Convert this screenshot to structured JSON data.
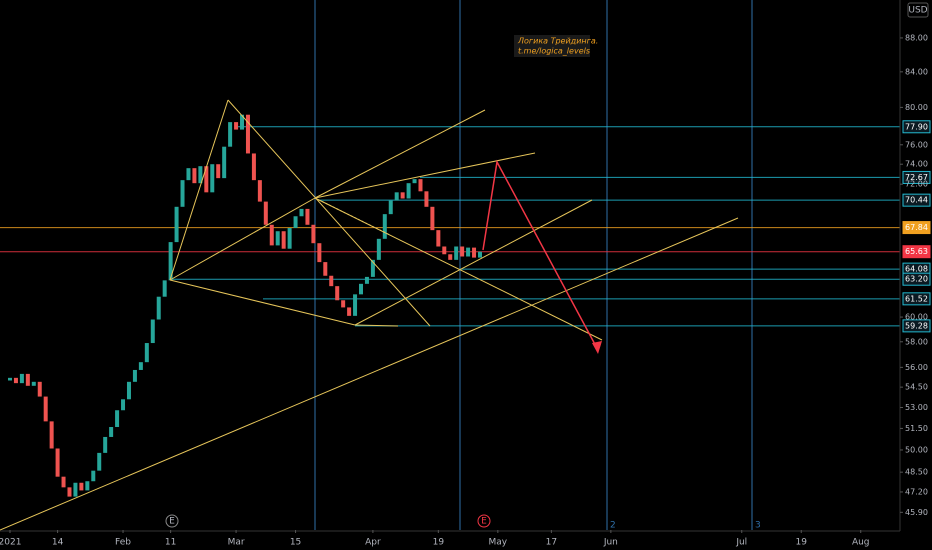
{
  "chart_data": {
    "type": "candlestick",
    "currency": "USD",
    "annotation": [
      "Логика Трейдинга.",
      "t.me/logica_levels"
    ],
    "markers": [
      "E",
      "E"
    ],
    "cycle_labels": [
      "2",
      "3"
    ],
    "log_scale": true,
    "up_color": "#26a69a",
    "down_color": "#ef5350",
    "xlim": [
      -1.68,
      149.6
    ],
    "ylim": [
      44.8,
      92.7
    ],
    "xticks": [
      {
        "value": 0,
        "label": "2021"
      },
      {
        "value": 8,
        "label": "14"
      },
      {
        "value": 19,
        "label": "Feb"
      },
      {
        "value": 27,
        "label": "11"
      },
      {
        "value": 38,
        "label": "Mar"
      },
      {
        "value": 48,
        "label": "15"
      },
      {
        "value": 61,
        "label": "Apr"
      },
      {
        "value": 72,
        "label": "19"
      },
      {
        "value": 82,
        "label": "May"
      },
      {
        "value": 91,
        "label": "17"
      },
      {
        "value": 101,
        "label": "Jun"
      },
      {
        "value": 123,
        "label": "Jul"
      },
      {
        "value": 133,
        "label": "19"
      },
      {
        "value": 143,
        "label": "Aug"
      }
    ],
    "yticks": [
      {
        "value": 88,
        "label": "88.00"
      },
      {
        "value": 84,
        "label": "84.00"
      },
      {
        "value": 80,
        "label": "80.00"
      },
      {
        "value": 76,
        "label": "76.00"
      },
      {
        "value": 74,
        "label": "74.00"
      },
      {
        "value": 72,
        "label": "72.00"
      },
      {
        "value": 60,
        "label": "60.00"
      },
      {
        "value": 58,
        "label": "58.00"
      },
      {
        "value": 56,
        "label": "56.00"
      },
      {
        "value": 54.5,
        "label": "54.50"
      },
      {
        "value": 53,
        "label": "53.00"
      },
      {
        "value": 51.5,
        "label": "51.50"
      },
      {
        "value": 50,
        "label": "50.00"
      },
      {
        "value": 48.5,
        "label": "48.50"
      },
      {
        "value": 47.2,
        "label": "47.20"
      },
      {
        "value": 45.9,
        "label": "45.90"
      }
    ],
    "levels": [
      {
        "value": 77.9,
        "label": "77.90",
        "color": "#22b8cf"
      },
      {
        "value": 72.67,
        "label": "72.67",
        "color": "#22b8cf"
      },
      {
        "value": 70.44,
        "label": "70.44",
        "color": "#22b8cf"
      },
      {
        "value": 67.84,
        "label": "67.84",
        "color": "#f0a020"
      },
      {
        "value": 65.63,
        "label": "65.63",
        "color": "#f23645"
      },
      {
        "value": 64.08,
        "label": "64.08",
        "color": "#22b8cf"
      },
      {
        "value": 63.2,
        "label": "63.20",
        "color": "#22b8cf"
      },
      {
        "value": 61.52,
        "label": "61.52",
        "color": "#22b8cf"
      },
      {
        "value": 59.28,
        "label": "59.28",
        "color": "#22b8cf"
      }
    ],
    "open": [
      55.0,
      55.2,
      54.8,
      55.5,
      54.6,
      54.9,
      53.8,
      52.0,
      50.1,
      48.2,
      47.5,
      46.9,
      47.8,
      47.3,
      47.9,
      48.6,
      49.8,
      50.9,
      51.6,
      52.8,
      53.6,
      54.9,
      55.8,
      56.4,
      57.9,
      59.8,
      61.7,
      63.1,
      66.5,
      69.8,
      72.4,
      73.6,
      72.1,
      73.8,
      71.2,
      74.0,
      72.6,
      75.8,
      78.4,
      77.6,
      79.2,
      75.1,
      72.4,
      70.3,
      68.1,
      66.2,
      67.5,
      65.9,
      67.8,
      68.9,
      69.6,
      68.1,
      66.4,
      64.7,
      63.5,
      62.6,
      61.4,
      60.8,
      60.1,
      61.9,
      62.8,
      63.4,
      64.9,
      66.8,
      69.1,
      70.4,
      71.2,
      70.6,
      72.1,
      72.5,
      71.3,
      69.8,
      67.6,
      66.1,
      65.4,
      64.9,
      66.1,
      65.2,
      66.0,
      65.1
    ],
    "close": [
      55.2,
      54.8,
      55.5,
      54.6,
      54.9,
      53.8,
      52.0,
      50.1,
      48.2,
      47.5,
      46.9,
      47.8,
      47.3,
      47.9,
      48.6,
      49.8,
      50.9,
      51.6,
      52.8,
      53.6,
      54.9,
      55.8,
      56.4,
      57.9,
      59.8,
      61.7,
      63.1,
      66.5,
      69.8,
      72.4,
      73.6,
      72.1,
      73.8,
      71.2,
      74.0,
      72.6,
      75.8,
      78.4,
      77.6,
      79.2,
      75.1,
      72.4,
      70.3,
      68.1,
      66.2,
      67.5,
      65.9,
      67.8,
      68.9,
      69.6,
      68.1,
      66.4,
      64.7,
      63.5,
      62.6,
      61.4,
      60.8,
      60.1,
      61.9,
      62.8,
      63.4,
      64.9,
      66.8,
      69.1,
      70.4,
      71.2,
      70.6,
      72.1,
      72.5,
      71.3,
      69.8,
      67.6,
      66.1,
      65.4,
      64.9,
      66.1,
      65.2,
      66.0,
      65.1,
      65.63
    ]
  }
}
